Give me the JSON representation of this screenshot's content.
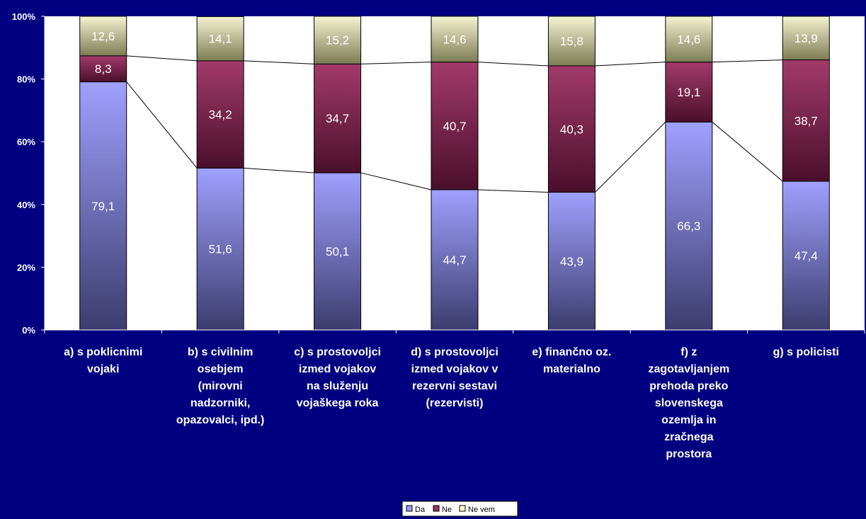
{
  "chart_data": {
    "type": "bar",
    "stacked": true,
    "percent": true,
    "categories": [
      [
        "a) s poklicnimi",
        "vojaki"
      ],
      [
        "b) s civilnim",
        "osebjem",
        "(mirovni",
        "nadzorniki,",
        "opazovalci, ipd.)"
      ],
      [
        "c) s prostovoljci",
        "izmed vojakov",
        "na služenju",
        "vojaškega roka"
      ],
      [
        "d) s prostovoljci",
        "izmed vojakov v",
        "rezervni sestavi",
        "(rezervisti)"
      ],
      [
        "e) finančno oz.",
        "materialno"
      ],
      [
        "f) z",
        "zagotavljanjem",
        "prehoda preko",
        "slovenskega",
        "ozemlja in",
        "zračnega",
        "prostora"
      ],
      [
        "g) s policisti"
      ]
    ],
    "series": [
      {
        "name": "Da",
        "values": [
          79.1,
          51.6,
          50.1,
          44.7,
          43.9,
          66.3,
          47.4
        ],
        "labels": [
          "79,1",
          "51,6",
          "50,1",
          "44,7",
          "43,9",
          "66,3",
          "47,4"
        ],
        "color": "#9999ff"
      },
      {
        "name": "Ne",
        "values": [
          8.3,
          34.2,
          34.7,
          40.7,
          40.3,
          19.1,
          38.7
        ],
        "labels": [
          "8,3",
          "34,2",
          "34,7",
          "40,7",
          "40,3",
          "19,1",
          "38,7"
        ],
        "color": "#993366"
      },
      {
        "name": "Ne vem",
        "values": [
          12.6,
          14.1,
          15.2,
          14.6,
          15.8,
          14.6,
          13.9
        ],
        "labels": [
          "12,6",
          "14,1",
          "15,2",
          "14,6",
          "15,8",
          "14,6",
          "13,9"
        ],
        "color": "#ffffcc"
      }
    ],
    "yticks": [
      "0%",
      "20%",
      "40%",
      "60%",
      "80%",
      "100%"
    ],
    "ylim": [
      0,
      100
    ],
    "series_lines": true,
    "legend_position": "bottom",
    "plot_background": "#ffffff",
    "background": "#000080"
  }
}
